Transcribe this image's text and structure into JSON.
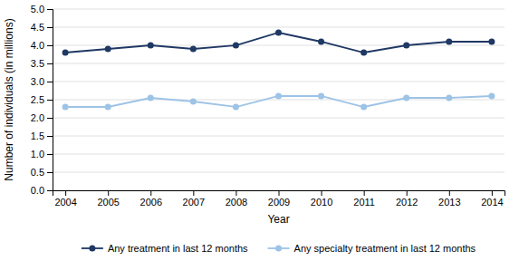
{
  "chart_data": {
    "type": "line",
    "xlabel": "Year",
    "ylabel": "Number of individuals (in millions)",
    "x": [
      2004,
      2005,
      2006,
      2007,
      2008,
      2009,
      2010,
      2011,
      2012,
      2013,
      2014
    ],
    "xlim": [
      2003.7,
      2014.3
    ],
    "xticks": [
      2004,
      2005,
      2006,
      2007,
      2008,
      2009,
      2010,
      2011,
      2012,
      2013,
      2014
    ],
    "ylim": [
      0.0,
      5.0
    ],
    "yticks": [
      {
        "value": 0,
        "label": "0.0"
      },
      0.5,
      {
        "value": 1,
        "label": "1.0"
      },
      1.5,
      {
        "value": 2,
        "label": "2.0"
      },
      2.5,
      {
        "value": 3,
        "label": "3.0"
      },
      3.5,
      {
        "value": 4,
        "label": "4.0"
      },
      4.5,
      {
        "value": 5,
        "label": "5.0"
      }
    ],
    "grid": true,
    "legend": "bottom",
    "marker": "circle",
    "series": [
      {
        "name": "Any treatment in last 12 months",
        "color": "#1F3864",
        "values": [
          3.8,
          3.9,
          4.0,
          3.9,
          4.0,
          4.35,
          4.1,
          3.8,
          4.0,
          4.1,
          4.1
        ]
      },
      {
        "name": "Any specialty treatment in last 12 months",
        "color": "#9DC3E6",
        "values": [
          2.3,
          2.3,
          2.55,
          2.45,
          2.3,
          2.6,
          2.6,
          2.3,
          2.55,
          2.55,
          2.6
        ]
      }
    ]
  }
}
